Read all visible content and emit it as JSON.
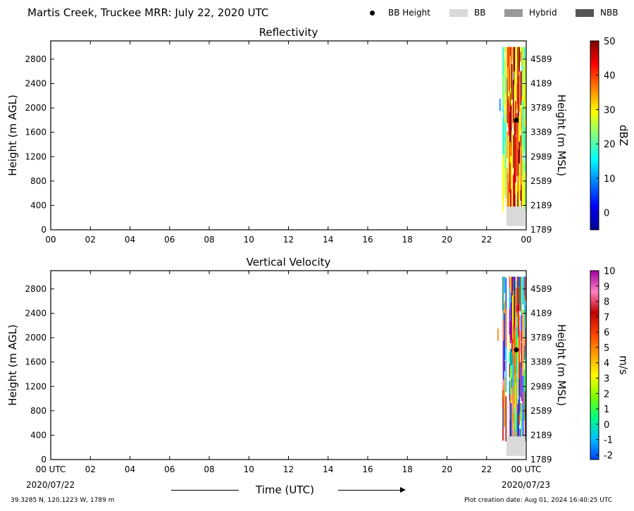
{
  "header": {
    "title": "Martis Creek, Truckee MRR:  July 22, 2020 UTC",
    "legend": [
      {
        "label": "BB Height",
        "marker": "dot",
        "color": "#000000"
      },
      {
        "label": "BB",
        "marker": "swatch",
        "color": "#d9d9d9"
      },
      {
        "label": "Hybrid",
        "marker": "swatch",
        "color": "#999999"
      },
      {
        "label": "NBB",
        "marker": "swatch",
        "color": "#555555"
      }
    ]
  },
  "footer": {
    "location": "39.3285 N, 120.1223 W, 1789 m",
    "creation_date": "Plot creation date: Aug 01, 2024 16:40:25 UTC",
    "xlabel": "Time (UTC)",
    "start_tick": "00 UTC",
    "start_date": "2020/07/22",
    "end_tick": "00 UTC",
    "end_date": "2020/07/23"
  },
  "chart_data": [
    {
      "type": "heatmap",
      "title": "Reflectivity",
      "xlabel": "",
      "ylabel": "Height (m AGL)",
      "ylabel_right": "Height (m MSL)",
      "x_unit": "hour UTC",
      "xlim": [
        0,
        24
      ],
      "ylim": [
        0,
        3100
      ],
      "xticks": [
        "00",
        "02",
        "04",
        "06",
        "08",
        "10",
        "12",
        "14",
        "16",
        "18",
        "20",
        "22",
        "00"
      ],
      "yticks_left": [
        0,
        400,
        800,
        1200,
        1600,
        2000,
        2400,
        2800
      ],
      "yticks_right": [
        "1789",
        "2189",
        "2589",
        "2989",
        "3389",
        "3789",
        "4189",
        "4589"
      ],
      "colorbar": {
        "label": "dBZ",
        "range": [
          -5,
          50
        ],
        "ticks": [
          0,
          10,
          20,
          30,
          40,
          50
        ],
        "colormap": [
          "#00008f",
          "#0000ff",
          "#0080ff",
          "#00ffff",
          "#80ff80",
          "#ffff00",
          "#ff8000",
          "#ff0000",
          "#800000"
        ]
      },
      "bb_height": [
        {
          "time": 23.5,
          "height": 1800
        }
      ],
      "bb_type_bar": [
        {
          "start": 23.0,
          "end": 23.95,
          "type": "BB"
        }
      ],
      "data_window": {
        "start": 22.8,
        "end": 24.0,
        "height_min": 300,
        "height_max": 3000
      },
      "isolated_echo": {
        "time": 22.65,
        "height_min": 1950,
        "height_max": 2150
      }
    },
    {
      "type": "heatmap",
      "title": "Vertical Velocity",
      "xlabel": "Time (UTC)",
      "ylabel": "Height (m AGL)",
      "ylabel_right": "Height (m MSL)",
      "x_unit": "hour UTC",
      "xlim": [
        0,
        24
      ],
      "ylim": [
        0,
        3100
      ],
      "xticks": [
        "00 UTC",
        "02",
        "04",
        "06",
        "08",
        "10",
        "12",
        "14",
        "16",
        "18",
        "20",
        "22",
        "00 UTC"
      ],
      "yticks_left": [
        0,
        400,
        800,
        1200,
        1600,
        2000,
        2400,
        2800
      ],
      "yticks_right": [
        "1789",
        "2189",
        "2589",
        "2989",
        "3389",
        "3789",
        "4189",
        "4589"
      ],
      "colorbar": {
        "label": "m/s",
        "range": [
          -2.3,
          10
        ],
        "ticks": [
          -2,
          -1,
          0,
          1,
          2,
          3,
          4,
          5,
          6,
          7,
          8,
          9,
          10
        ],
        "colormap": [
          "#0040ff",
          "#00c0ff",
          "#00ff80",
          "#80ff00",
          "#ffff00",
          "#ffa000",
          "#ff4000",
          "#c00000",
          "#ff80c0",
          "#a000a0"
        ]
      },
      "bb_height": [
        {
          "time": 23.5,
          "height": 1800
        }
      ],
      "bb_type_bar": [
        {
          "start": 23.0,
          "end": 23.95,
          "type": "BB"
        }
      ],
      "data_window": {
        "start": 22.8,
        "end": 24.0,
        "height_min": 300,
        "height_max": 3000
      },
      "isolated_echo": {
        "time": 22.55,
        "height_min": 1950,
        "height_max": 2150
      }
    }
  ]
}
